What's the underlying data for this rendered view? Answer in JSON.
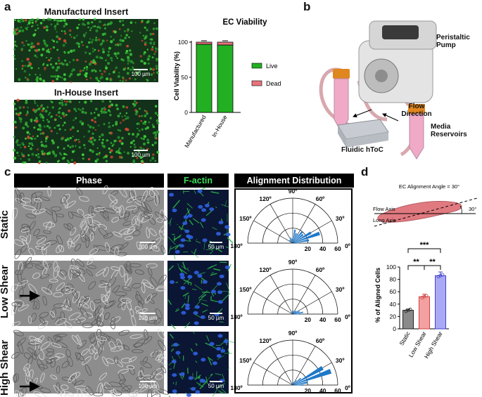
{
  "panel_labels": {
    "a": "a",
    "b": "b",
    "c": "c",
    "d": "d"
  },
  "panel_a": {
    "manufactured_title": "Manufactured Insert",
    "inhouse_title": "In-House Insert",
    "scale_bar": "100 µm"
  },
  "panel_b": {
    "peristaltic_pump": "Peristaltic Pump",
    "flow_direction": "Flow Direction",
    "media_reservoirs": "Media Reservoirs",
    "fluidic_htoc": "Fluidic hToC"
  },
  "panel_c": {
    "headers": {
      "phase": "Phase",
      "factin": "F-actin",
      "alignment": "Alignment Distribution"
    },
    "rows": [
      "Static",
      "Low Shear",
      "High Shear"
    ],
    "phase_scale": "100 µm",
    "factin_scale": "50 µm",
    "polar_angle_labels": [
      "90º",
      "120º",
      "60º",
      "150º",
      "30º",
      "180º",
      "0º"
    ],
    "polar_radial_ticks": [
      "20",
      "40",
      "60"
    ]
  },
  "panel_d": {
    "diagram_title": "EC Alignment Angle = 30°",
    "flow_axis": "Flow Axis",
    "long_axis": "Long Axis",
    "angle_label": "30°",
    "sig_top": "***",
    "sig_left": "**",
    "sig_right": "**"
  },
  "colors": {
    "live": "#22b022",
    "dead": "#e8737d",
    "static_bar": "#8a8a8a",
    "low_shear_bar": "#f4a0a0",
    "high_shear_bar": "#a9a9f5",
    "polar_blue": "#1f78c8",
    "factin_green": "#2db34a"
  },
  "chart_data": [
    {
      "type": "bar",
      "title": "EC Viability",
      "stacked": true,
      "categories": [
        "Manufactured",
        "In-House"
      ],
      "ylabel": "Cell Viability (%)",
      "ylim": [
        0,
        100
      ],
      "yticks": [
        "0",
        "50",
        "100"
      ],
      "series": [
        {
          "name": "Live",
          "values": [
            97,
            96
          ]
        },
        {
          "name": "Dead",
          "values": [
            3,
            4
          ]
        }
      ],
      "legend": "right"
    },
    {
      "type": "bar",
      "categories": [
        "Static",
        "Low Shear",
        "High Shear"
      ],
      "values": [
        30,
        52,
        86
      ],
      "errors": [
        2,
        4,
        6
      ],
      "ylabel": "% of Aligned Cells",
      "ylim": [
        0,
        100
      ],
      "yticks": [
        "0",
        "20",
        "40",
        "60",
        "80",
        "100"
      ]
    },
    {
      "type": "bar",
      "polar": true,
      "rows": [
        {
          "name": "Static",
          "angles": [
            0,
            10,
            20,
            30,
            40,
            50,
            60,
            70,
            80,
            90,
            100,
            110,
            120,
            130,
            140,
            150,
            160,
            170,
            180
          ],
          "counts": [
            8,
            22,
            38,
            28,
            18,
            20,
            14,
            14,
            18,
            8,
            6,
            8,
            8,
            6,
            6,
            4,
            4,
            3,
            2
          ]
        },
        {
          "name": "Low Shear",
          "angles": [
            0,
            10,
            20,
            30,
            40,
            50,
            60,
            70,
            80,
            90,
            100,
            110,
            120,
            130,
            140,
            150,
            160,
            170,
            180
          ],
          "counts": [
            10,
            14,
            10,
            8,
            6,
            6,
            6,
            4,
            5,
            4,
            4,
            3,
            3,
            3,
            2,
            2,
            2,
            2,
            2
          ]
        },
        {
          "name": "High Shear",
          "angles": [
            0,
            10,
            20,
            30,
            40,
            50,
            60,
            70,
            80,
            90,
            100,
            110,
            120,
            130,
            140,
            150,
            160,
            170,
            180
          ],
          "counts": [
            14,
            20,
            54,
            46,
            14,
            8,
            6,
            4,
            4,
            3,
            3,
            3,
            2,
            2,
            2,
            2,
            2,
            2,
            2
          ]
        }
      ],
      "rlim": [
        0,
        60
      ]
    }
  ]
}
